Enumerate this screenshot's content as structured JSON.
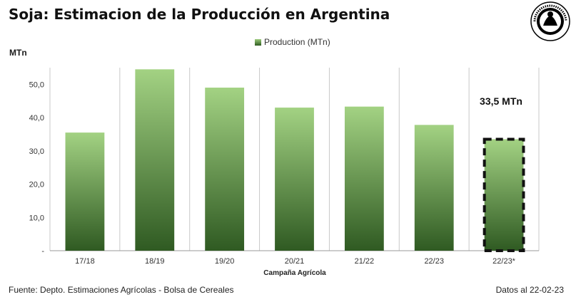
{
  "title": "Soja: Estimacion de la Producción en Argentina",
  "chart_data": {
    "type": "bar",
    "categories": [
      "17/18",
      "18/19",
      "19/20",
      "20/21",
      "21/22",
      "22/23",
      "22/23*"
    ],
    "series": [
      {
        "name": "Production (MTn)",
        "values": [
          35.5,
          54.5,
          49.0,
          43.0,
          43.3,
          37.8,
          33.5
        ]
      }
    ],
    "ylabel": "MTn",
    "xlabel": "Campaña Agrícola",
    "ylim": [
      0,
      55
    ],
    "yticks": [
      {
        "value": 0,
        "label": "-"
      },
      {
        "value": 10,
        "label": "10,0"
      },
      {
        "value": 20,
        "label": "20,0"
      },
      {
        "value": 30,
        "label": "30,0"
      },
      {
        "value": 40,
        "label": "40,0"
      },
      {
        "value": 50,
        "label": "50,0"
      }
    ],
    "grid": true,
    "legend_position": "top-center",
    "highlight_index": 6,
    "annotation": "33,5 MTn",
    "colors": {
      "bar_top": "#a3d283",
      "bar_bottom": "#2f5a22",
      "highlight_border": "#111111",
      "grid": "#c8c8c8"
    }
  },
  "footer": {
    "source": "Fuente: Depto. Estimaciones Agrícolas - Bolsa de Cereales",
    "date": "Datos al 22-02-23"
  }
}
